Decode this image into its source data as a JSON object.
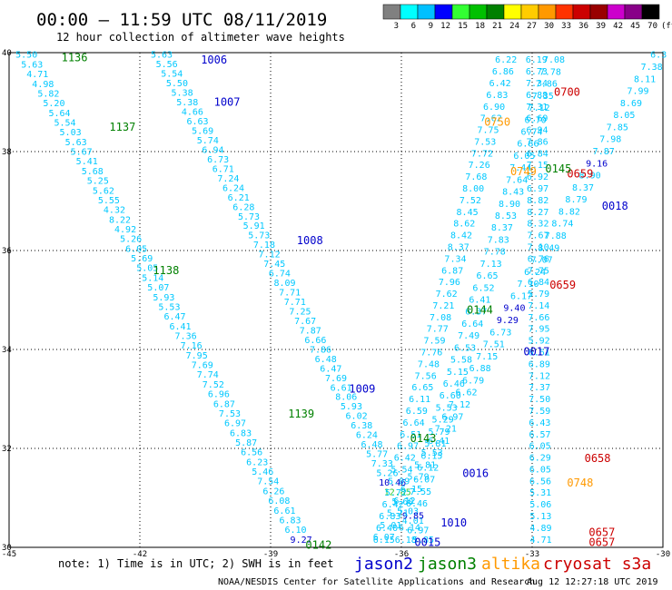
{
  "header": {
    "title": "00:00 – 11:59 UTC 08/11/2019",
    "subtitle": "12 hour collection of altimeter wave heights"
  },
  "colorbar": {
    "labels": [
      "3",
      "6",
      "9",
      "12",
      "15",
      "18",
      "21",
      "24",
      "27",
      "30",
      "33",
      "36",
      "39",
      "42",
      "45",
      "70"
    ],
    "unit": "(ft)",
    "colors": [
      "#808080",
      "#00ffff",
      "#00c0ff",
      "#0000ff",
      "#33ff33",
      "#00c000",
      "#008000",
      "#ffff00",
      "#ffcc00",
      "#ff9900",
      "#ff3300",
      "#cc0000",
      "#990000",
      "#cc00cc",
      "#880088",
      "#000000"
    ]
  },
  "footer": {
    "note": "note: 1) Time is in UTC; 2) SWH is in feet",
    "legend": [
      {
        "label": "jason2",
        "color": "#0000cc"
      },
      {
        "label": "jason3",
        "color": "#008000"
      },
      {
        "label": "altika",
        "color": "#ff9900"
      },
      {
        "label": "cryosat s3a",
        "color": "#cc0000"
      }
    ],
    "credit": "NOAA/NESDIS Center for Satellite Applications and Research",
    "timestamp": "Aug 12 12:27:18 UTC 2019"
  },
  "chart_data": {
    "type": "scatter",
    "title": "00:00 – 11:59 UTC 08/11/2019",
    "subtitle": "12 hour collection of altimeter wave heights",
    "xlim": [
      -45,
      -30
    ],
    "ylim": [
      30,
      40
    ],
    "x_ticks": [
      -45,
      -42,
      -39,
      -36,
      -33,
      -30
    ],
    "y_ticks": [
      30,
      32,
      34,
      36,
      38,
      40
    ],
    "grid": true,
    "swh_colors": {
      "cyan": "#00c8ff",
      "lightcyan": "#00dcff"
    },
    "time_labels": [
      {
        "text": "1136",
        "lon": -43.8,
        "lat": 39.9,
        "color": "#008000"
      },
      {
        "text": "1006",
        "lon": -40.6,
        "lat": 39.85,
        "color": "#0000cc"
      },
      {
        "text": "1007",
        "lon": -40.3,
        "lat": 39.0,
        "color": "#0000cc"
      },
      {
        "text": "1137",
        "lon": -42.7,
        "lat": 38.5,
        "color": "#008000"
      },
      {
        "text": "1008",
        "lon": -38.4,
        "lat": 36.2,
        "color": "#0000cc"
      },
      {
        "text": "1138",
        "lon": -41.7,
        "lat": 35.6,
        "color": "#008000"
      },
      {
        "text": "1009",
        "lon": -37.2,
        "lat": 33.2,
        "color": "#0000cc"
      },
      {
        "text": "1139",
        "lon": -38.6,
        "lat": 32.7,
        "color": "#008000"
      },
      {
        "text": "0143",
        "lon": -35.8,
        "lat": 32.2,
        "color": "#008000"
      },
      {
        "text": "0144",
        "lon": -34.5,
        "lat": 34.8,
        "color": "#008000"
      },
      {
        "text": "0016",
        "lon": -34.6,
        "lat": 31.5,
        "color": "#0000cc"
      },
      {
        "text": "1010",
        "lon": -35.1,
        "lat": 30.5,
        "color": "#0000cc"
      },
      {
        "text": "0015",
        "lon": -35.7,
        "lat": 30.1,
        "color": "#0000cc"
      },
      {
        "text": "0142",
        "lon": -38.2,
        "lat": 30.05,
        "color": "#008000"
      },
      {
        "text": "0750",
        "lon": -34.1,
        "lat": 38.6,
        "color": "#ff9900"
      },
      {
        "text": "0749",
        "lon": -33.5,
        "lat": 37.6,
        "color": "#ff9900"
      },
      {
        "text": "0748",
        "lon": -32.2,
        "lat": 31.3,
        "color": "#ff9900"
      },
      {
        "text": "0700",
        "lon": -32.5,
        "lat": 39.2,
        "color": "#cc0000"
      },
      {
        "text": "0659",
        "lon": -32.2,
        "lat": 37.55,
        "color": "#cc0000"
      },
      {
        "text": "0659",
        "lon": -32.6,
        "lat": 35.3,
        "color": "#cc0000"
      },
      {
        "text": "0658",
        "lon": -31.8,
        "lat": 31.8,
        "color": "#cc0000"
      },
      {
        "text": "0657",
        "lon": -31.7,
        "lat": 30.3,
        "color": "#cc0000"
      },
      {
        "text": "0657",
        "lon": -31.7,
        "lat": 30.1,
        "color": "#cc0000"
      },
      {
        "text": "0145",
        "lon": -32.7,
        "lat": 37.65,
        "color": "#008000"
      },
      {
        "text": "0018",
        "lon": -31.4,
        "lat": 36.9,
        "color": "#0000cc"
      },
      {
        "text": "0017",
        "lon": -33.2,
        "lat": 33.95,
        "color": "#0000cc"
      }
    ],
    "tracks": [
      {
        "name": "track-1136",
        "start": [
          -44.6,
          39.95
        ],
        "end": [
          -38.3,
          30.15
        ],
        "values": [
          "5.50",
          "5.63",
          "4.71",
          "4.98",
          "5.82",
          "5.20",
          "5.64",
          "5.54",
          "5.03",
          "5.63",
          "5.67",
          "5.41",
          "5.68",
          "5.25",
          "5.62",
          "5.55",
          "4.32",
          "8.22",
          "4.92",
          "5.26",
          "6.05",
          "5.69",
          "5.05",
          "5.14",
          "5.07",
          "5.93",
          "5.53",
          "6.47",
          "6.41",
          "7.36",
          "7.16",
          "7.95",
          "7.69",
          "7.74",
          "7.52",
          "6.96",
          "6.87",
          "7.53",
          "6.97",
          "6.83",
          "5.87",
          "6.56",
          "6.23",
          "5.46",
          "7.54",
          "6.26",
          "6.08",
          "6.61",
          "6.83",
          "6.10",
          "9.27"
        ]
      },
      {
        "name": "track-1006",
        "start": [
          -41.5,
          39.95
        ],
        "end": [
          -35.5,
          30.15
        ],
        "values": [
          "5.63",
          "5.56",
          "5.54",
          "5.50",
          "5.38",
          "5.38",
          "4.66",
          "6.63",
          "5.69",
          "5.74",
          "6.94",
          "6.73",
          "6.71",
          "7.24",
          "6.24",
          "6.21",
          "6.28",
          "5.73",
          "5.91",
          "5.73",
          "7.18",
          "7.12",
          "7.45",
          "6.74",
          "8.09",
          "7.71",
          "7.71",
          "7.25",
          "7.67",
          "7.87",
          "6.66",
          "7.86",
          "6.48",
          "6.47",
          "7.69",
          "6.61",
          "8.06",
          "5.93",
          "6.02",
          "6.38",
          "6.24",
          "6.48",
          "5.77",
          "7.33",
          "5.26",
          "10.46",
          "12.85",
          "5.60",
          "5.03",
          "4.01",
          "6.97",
          "5.85"
        ]
      },
      {
        "name": "track-0750",
        "start": [
          -33.6,
          39.85
        ],
        "end": [
          -36.4,
          30.15
        ],
        "values": [
          "6.22",
          "6.86",
          "6.42",
          "6.83",
          "6.90",
          "7.62",
          "7.75",
          "7.53",
          "7.72",
          "7.26",
          "7.68",
          "8.00",
          "7.52",
          "8.45",
          "8.62",
          "8.42",
          "8.37",
          "7.34",
          "6.87",
          "7.96",
          "7.62",
          "7.21",
          "7.08",
          "7.77",
          "7.59",
          "7.76",
          "7.48",
          "7.56",
          "6.65",
          "6.11",
          "6.59",
          "6.64",
          "6.51",
          "6.97",
          "6.42",
          "5.54",
          "5.09",
          "5.72",
          "6.42",
          "6.83",
          "6.40",
          "6.15"
        ]
      },
      {
        "name": "track-0700",
        "start": [
          -32.5,
          39.85
        ],
        "end": [
          -35.9,
          30.15
        ],
        "values": [
          "7.08",
          "7.78",
          "7.86",
          "7.35",
          "7.12",
          "6.70",
          "6.74",
          "6.86",
          "6.05",
          "7.44",
          "7.64",
          "8.43",
          "8.90",
          "8.53",
          "8.37",
          "7.83",
          "7.78",
          "7.13",
          "6.65",
          "6.52",
          "6.41",
          "6.37",
          "6.64",
          "7.49",
          "6.53",
          "5.58",
          "5.15",
          "6.46",
          "6.60",
          "5.53",
          "5.29",
          "5.79",
          "5.81",
          "6.15",
          "6.12",
          "6.07",
          "7.55",
          "6.46",
          "9.85",
          "6.14",
          "6.18"
        ]
      },
      {
        "name": "track-0016",
        "start": [
          -30.1,
          39.95
        ],
        "end": [
          -36.4,
          30.2
        ],
        "values": [
          "6.3",
          "7.38",
          "8.11",
          "7.99",
          "8.69",
          "8.05",
          "7.85",
          "7.98",
          "7.87",
          "9.16",
          "8.90",
          "8.37",
          "8.79",
          "8.82",
          "8.74",
          "7.88",
          "8.49",
          "7.07",
          "6.24",
          "7.10",
          "6.17",
          "9.40",
          "9.29",
          "6.73",
          "7.51",
          "7.15",
          "6.88",
          "6.79",
          "6.62",
          "7.12",
          "6.97",
          "7.21",
          "6.41",
          "5.53",
          "5.81",
          "5.79",
          "6.15",
          "6.12",
          "5.21",
          "5.01",
          "6.07"
        ]
      },
      {
        "name": "track-0145",
        "start": [
          -32.9,
          39.85
        ],
        "end": [
          -32.8,
          30.15
        ],
        "values": [
          "6.19",
          "6.73",
          "7.34",
          "6.88",
          "7.31",
          "6.69",
          "6.94",
          "7.86",
          "6.84",
          "7.15",
          "6.92",
          "6.97",
          "8.82",
          "8.27",
          "8.32",
          "7.67",
          "7.10",
          "6.76",
          "7.75",
          "6.84",
          "5.79",
          "7.14",
          "7.66",
          "7.95",
          "5.92",
          "6.61",
          "6.89",
          "7.12",
          "7.37",
          "7.50",
          "7.59",
          "6.43",
          "6.57",
          "6.05",
          "6.29",
          "6.05",
          "6.56",
          "5.31",
          "5.06",
          "5.13",
          "4.89",
          "4.71"
        ]
      }
    ]
  }
}
